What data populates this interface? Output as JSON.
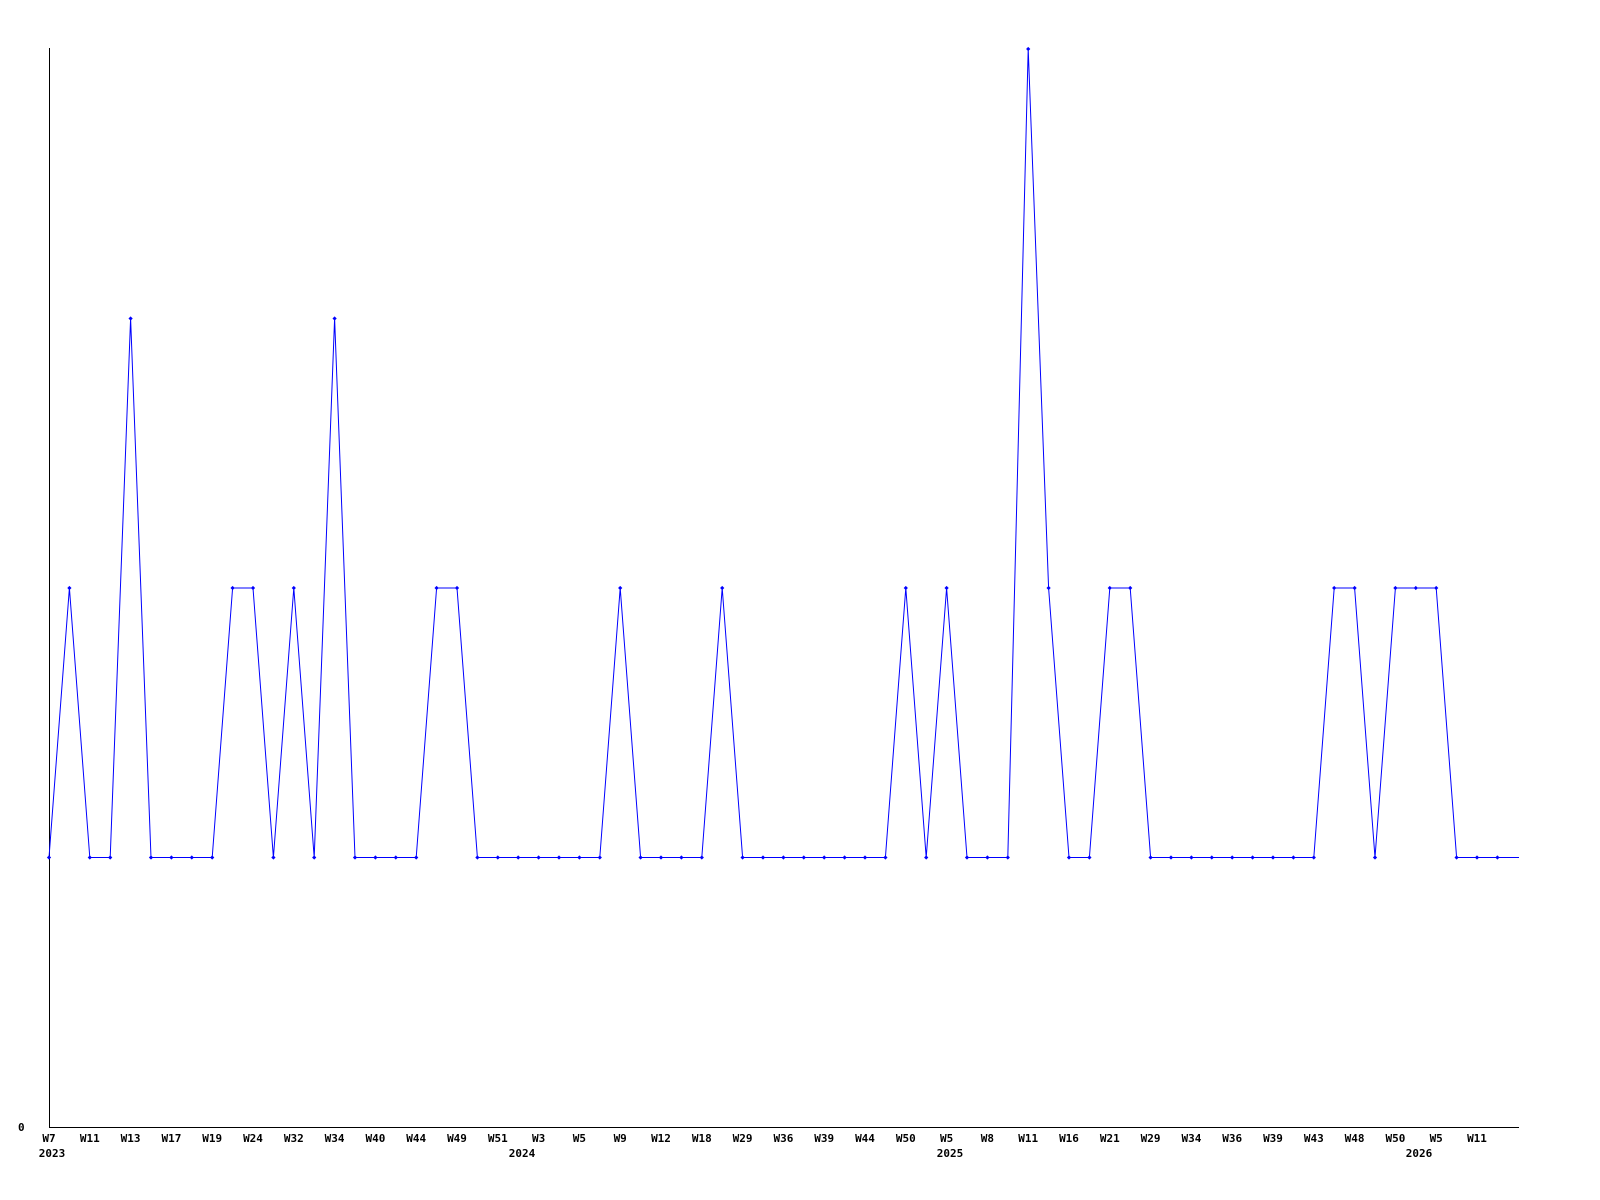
{
  "chart_data": {
    "type": "line",
    "title": "",
    "xlabel": "",
    "ylabel": "",
    "ylim": [
      0,
      4
    ],
    "y_tick_labels": [
      "0"
    ],
    "grid": false,
    "line_color": "#0000ff",
    "x_tick_labels": [
      "W7",
      "W11",
      "W13",
      "W17",
      "W19",
      "W24",
      "W32",
      "W34",
      "W40",
      "W44",
      "W49",
      "W51",
      "W3",
      "W5",
      "W9",
      "W12",
      "W18",
      "W29",
      "W36",
      "W39",
      "W44",
      "W50",
      "W5",
      "W8",
      "W11",
      "W16",
      "W21",
      "W29",
      "W34",
      "W36",
      "W39",
      "W43",
      "W48",
      "W50",
      "W5",
      "W11"
    ],
    "year_labels": [
      "2023",
      "2024",
      "2025",
      "2026"
    ],
    "values": [
      1,
      2,
      1,
      1,
      3,
      1,
      1,
      1,
      1,
      2,
      2,
      1,
      2,
      1,
      3,
      1,
      1,
      1,
      1,
      2,
      2,
      1,
      1,
      1,
      1,
      1,
      1,
      1,
      2,
      1,
      1,
      1,
      1,
      2,
      1,
      1,
      1,
      1,
      1,
      1,
      1,
      1,
      2,
      1,
      2,
      1,
      1,
      1,
      4,
      2,
      1,
      1,
      2,
      2,
      1,
      1,
      1,
      1,
      1,
      1,
      1,
      1,
      1,
      2,
      2,
      1,
      2,
      2,
      2,
      1,
      1,
      1
    ]
  }
}
